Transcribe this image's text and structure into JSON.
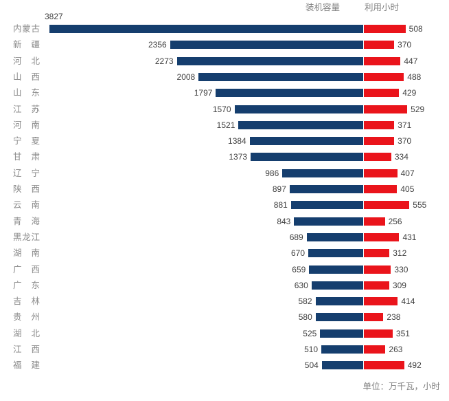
{
  "legend": {
    "capacity_label": "装机容量",
    "hours_label": "利用小时"
  },
  "footer": {
    "unit_note": "单位：万千瓦，小时"
  },
  "colors": {
    "capacity_bar": "#153E6E",
    "hours_bar": "#EA141B",
    "province_text": "#8A8A8A",
    "value_text": "#404040",
    "muted_text": "#7F7F7F"
  },
  "chart_data": {
    "type": "bar",
    "variant": "diverging-horizontal",
    "title": "",
    "xlabel": "",
    "ylabel": "",
    "legend_position": "top-right",
    "value_labels": "outside-ends",
    "unit_note": "单位：万千瓦，小时",
    "categories": [
      "内蒙古",
      "新疆",
      "河北",
      "山西",
      "山东",
      "江苏",
      "河南",
      "宁夏",
      "甘肃",
      "辽宁",
      "陕西",
      "云南",
      "青海",
      "黑龙江",
      "湖南",
      "广西",
      "广东",
      "吉林",
      "贵州",
      "湖北",
      "江西",
      "福建"
    ],
    "series": [
      {
        "name": "装机容量",
        "color": "#153E6E",
        "direction": "left",
        "values": [
          3827,
          2356,
          2273,
          2008,
          1797,
          1570,
          1521,
          1384,
          1373,
          986,
          897,
          881,
          843,
          689,
          670,
          659,
          630,
          582,
          580,
          525,
          510,
          504
        ]
      },
      {
        "name": "利用小时",
        "color": "#EA141B",
        "direction": "right",
        "values": [
          508,
          370,
          447,
          488,
          429,
          529,
          371,
          370,
          334,
          407,
          405,
          555,
          256,
          431,
          312,
          330,
          309,
          414,
          238,
          351,
          263,
          492
        ]
      }
    ]
  }
}
